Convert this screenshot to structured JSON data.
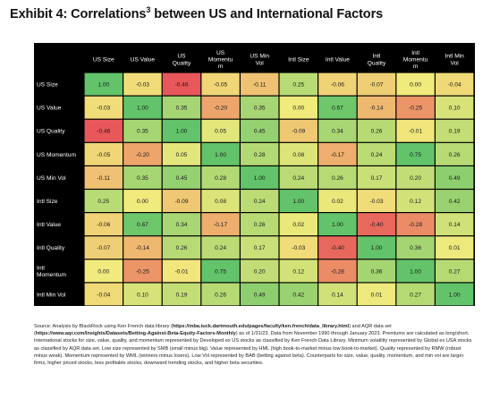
{
  "title": {
    "main": "Exhibit 4: Correlations",
    "sup": "3",
    "rest": " between US and International Factors"
  },
  "chart_data": {
    "type": "heatmap",
    "title": "Exhibit 4: Correlations3 between US and International Factors",
    "columns": [
      "US Size",
      "US Value",
      "US Quality",
      "US Momentum",
      "US Min Vol",
      "Intl Size",
      "Intl Value",
      "Intl Quality",
      "Intl Momentum",
      "Intl Min Vol"
    ],
    "column_labels": [
      [
        "US Size"
      ],
      [
        "US Value"
      ],
      [
        "US",
        "Quality"
      ],
      [
        "US",
        "Momentu",
        "m"
      ],
      [
        "US Min",
        "Vol"
      ],
      [
        "Intl Size"
      ],
      [
        "Intl Value"
      ],
      [
        "Intl",
        "Quality"
      ],
      [
        "Intl",
        "Momentu",
        "m"
      ],
      [
        "Intl Min",
        "Vol"
      ]
    ],
    "rows": [
      "US Size",
      "US Value",
      "US Quality",
      "US Momentum",
      "US Min Vol",
      "Intl Size",
      "Intl Value",
      "Intl Quality",
      "Intl Momentum",
      "Intl Min Vol"
    ],
    "row_labels": [
      [
        "US Size"
      ],
      [
        "US Value"
      ],
      [
        "US Quality"
      ],
      [
        "US Momentum"
      ],
      [
        "US Min Vol"
      ],
      [
        "Intl Size"
      ],
      [
        "Intl Value"
      ],
      [
        "Intl Quality"
      ],
      [
        "Intl",
        "Momentum"
      ],
      [
        "Intl Min Vol"
      ]
    ],
    "values": [
      [
        "1.00",
        "-0.03",
        "-0.46",
        "-0.05",
        "-0.11",
        "0.25",
        "-0.06",
        "-0.07",
        "0.00",
        "-0.04"
      ],
      [
        "-0.03",
        "1.00",
        "0.35",
        "-0.20",
        "0.35",
        "0.00",
        "0.67",
        "-0.14",
        "-0.25",
        "0.10"
      ],
      [
        "-0.46",
        "0.35",
        "1.00",
        "0.05",
        "0.45",
        "-0.09",
        "0.34",
        "0.26",
        "-0.01",
        "0.19"
      ],
      [
        "-0.05",
        "-0.20",
        "0.05",
        "1.00",
        "0.28",
        "0.08",
        "-0.17",
        "0.24",
        "0.75",
        "0.26"
      ],
      [
        "-0.11",
        "0.35",
        "0.45",
        "0.28",
        "1.00",
        "0.24",
        "0.26",
        "0.17",
        "0.20",
        "0.49"
      ],
      [
        "0.25",
        "0.00",
        "-0.09",
        "0.08",
        "0.24",
        "1.00",
        "0.02",
        "-0.03",
        "0.12",
        "0.42"
      ],
      [
        "-0.06",
        "0.67",
        "0.34",
        "-0.17",
        "0.26",
        "0.02",
        "1.00",
        "-0.40",
        "-0.28",
        "0.14"
      ],
      [
        "-0.07",
        "-0.14",
        "0.26",
        "0.24",
        "0.17",
        "-0.03",
        "-0.40",
        "1.00",
        "0.36",
        "0.01"
      ],
      [
        "0.00",
        "-0.25",
        "-0.01",
        "0.75",
        "0.20",
        "0.12",
        "-0.28",
        "0.36",
        "1.00",
        "0.27"
      ],
      [
        "-0.04",
        "0.10",
        "0.19",
        "0.26",
        "0.49",
        "0.42",
        "0.14",
        "0.01",
        "0.27",
        "1.00"
      ]
    ],
    "colors": {
      "background": "#000000",
      "negative": "#e8575a",
      "neutral": "#f1ea7c",
      "positive": "#62c36a"
    }
  },
  "source": {
    "p1": "Source: Analysis by BlackRock using Ken French data library (",
    "link1": "https://mba.tuck.dartmouth.edu/pages/faculty/ken.french/data_library.html",
    "p2": ") and AQR data set (",
    "link2": "https://www.aqr.com/Insights/Datasets/Betting-Against-Beta-Equity-Factors-Monthly",
    "p3": ") as of 1/31/23. Data from November 1990 through January 2023. Premiums are calculated as long/short. International stocks for size, value, quality, and momentum represented by Developed ex US stocks as classified by Ken French Data Library. Minimum volatility represented by Global ex USA stocks as classified by AQR data set. Low size represented by SMB (small minus big). Value represented by HML (high book-to-market minus low book-to-market). Quality represented by RMW (robust minus weak). Momentum represented by WML (winners minus losers). Low Vol represented by BAB (betting against beta). Counterparts for size, value, quality, momentum, and min vol are larger firms, higher priced stocks, less profitable stocks, downward trending stocks, and higher beta securities."
  }
}
